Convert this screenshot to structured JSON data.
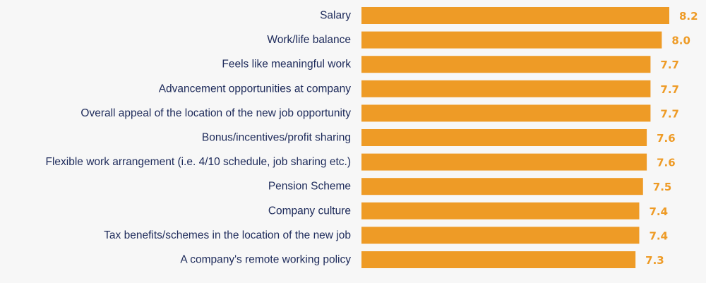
{
  "chart_data": {
    "type": "bar",
    "orientation": "horizontal",
    "title": "",
    "xlabel": "",
    "ylabel": "",
    "grid": false,
    "categories": [
      "Salary",
      "Work/life balance",
      "Feels like meaningful work",
      "Advancement opportunities at company",
      "Overall appeal of the location of the new job opportunity",
      "Bonus/incentives/profit sharing",
      "Flexible work arrangement (i.e. 4/10 schedule, job sharing etc.)",
      "Pension Scheme",
      "Company culture",
      "Tax benefits/schemes in the location of the new job",
      "A company's remote working policy"
    ],
    "values": [
      8.2,
      8.0,
      7.7,
      7.7,
      7.7,
      7.6,
      7.6,
      7.5,
      7.4,
      7.4,
      7.3
    ],
    "value_labels": [
      "8.2",
      "8.0",
      "7.7",
      "7.7",
      "7.7",
      "7.6",
      "7.6",
      "7.5",
      "7.4",
      "7.4",
      "7.3"
    ],
    "xlim": [
      0,
      8.2
    ],
    "colors": {
      "bar": "#ee9b26",
      "value_label": "#ee9b26",
      "category_label": "#1d2a5a",
      "background": "#f7f7f7"
    }
  }
}
